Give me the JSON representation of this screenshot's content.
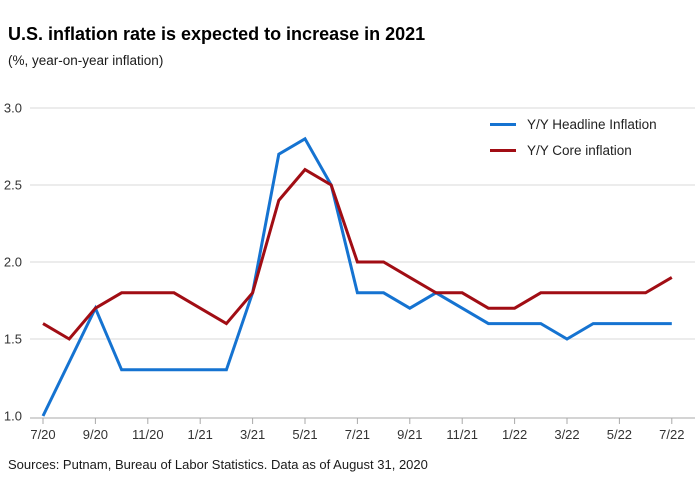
{
  "chart_data": {
    "type": "line",
    "title": "U.S. inflation rate is expected to increase in 2021",
    "subtitle": "(%, year-on-year inflation)",
    "source": "Sources: Putnam, Bureau of Labor Statistics. Data as of August 31, 2020",
    "x": [
      "7/20",
      "8/20",
      "9/20",
      "10/20",
      "11/20",
      "12/20",
      "1/21",
      "2/21",
      "3/21",
      "4/21",
      "5/21",
      "6/21",
      "7/21",
      "8/21",
      "9/21",
      "10/21",
      "11/21",
      "12/21",
      "1/22",
      "2/22",
      "3/22",
      "4/22",
      "5/22",
      "6/22",
      "7/22"
    ],
    "x_tick_labels": [
      "7/20",
      "9/20",
      "11/20",
      "1/21",
      "3/21",
      "5/21",
      "7/21",
      "9/21",
      "11/21",
      "1/22",
      "3/22",
      "5/22",
      "7/22"
    ],
    "yticks": [
      "1.0",
      "1.5",
      "2.0",
      "2.5",
      "3.0"
    ],
    "ylim": [
      1.0,
      3.0
    ],
    "grid": "horizontal",
    "legend_position": "top-right",
    "series": [
      {
        "name": "Y/Y Headline Inflation",
        "color": "#1573d1",
        "values": [
          1.0,
          1.35,
          1.7,
          1.3,
          1.3,
          1.3,
          1.3,
          1.3,
          1.8,
          2.7,
          2.8,
          2.5,
          1.8,
          1.8,
          1.7,
          1.8,
          1.7,
          1.6,
          1.6,
          1.6,
          1.5,
          1.6,
          1.6,
          1.6,
          1.6
        ]
      },
      {
        "name": "Y/Y Core inflation",
        "color": "#a10d14",
        "values": [
          1.6,
          1.5,
          1.7,
          1.8,
          1.8,
          1.8,
          1.7,
          1.6,
          1.8,
          2.4,
          2.6,
          2.5,
          2.0,
          2.0,
          1.9,
          1.8,
          1.8,
          1.7,
          1.7,
          1.8,
          1.8,
          1.8,
          1.8,
          1.8,
          1.9
        ]
      }
    ]
  }
}
